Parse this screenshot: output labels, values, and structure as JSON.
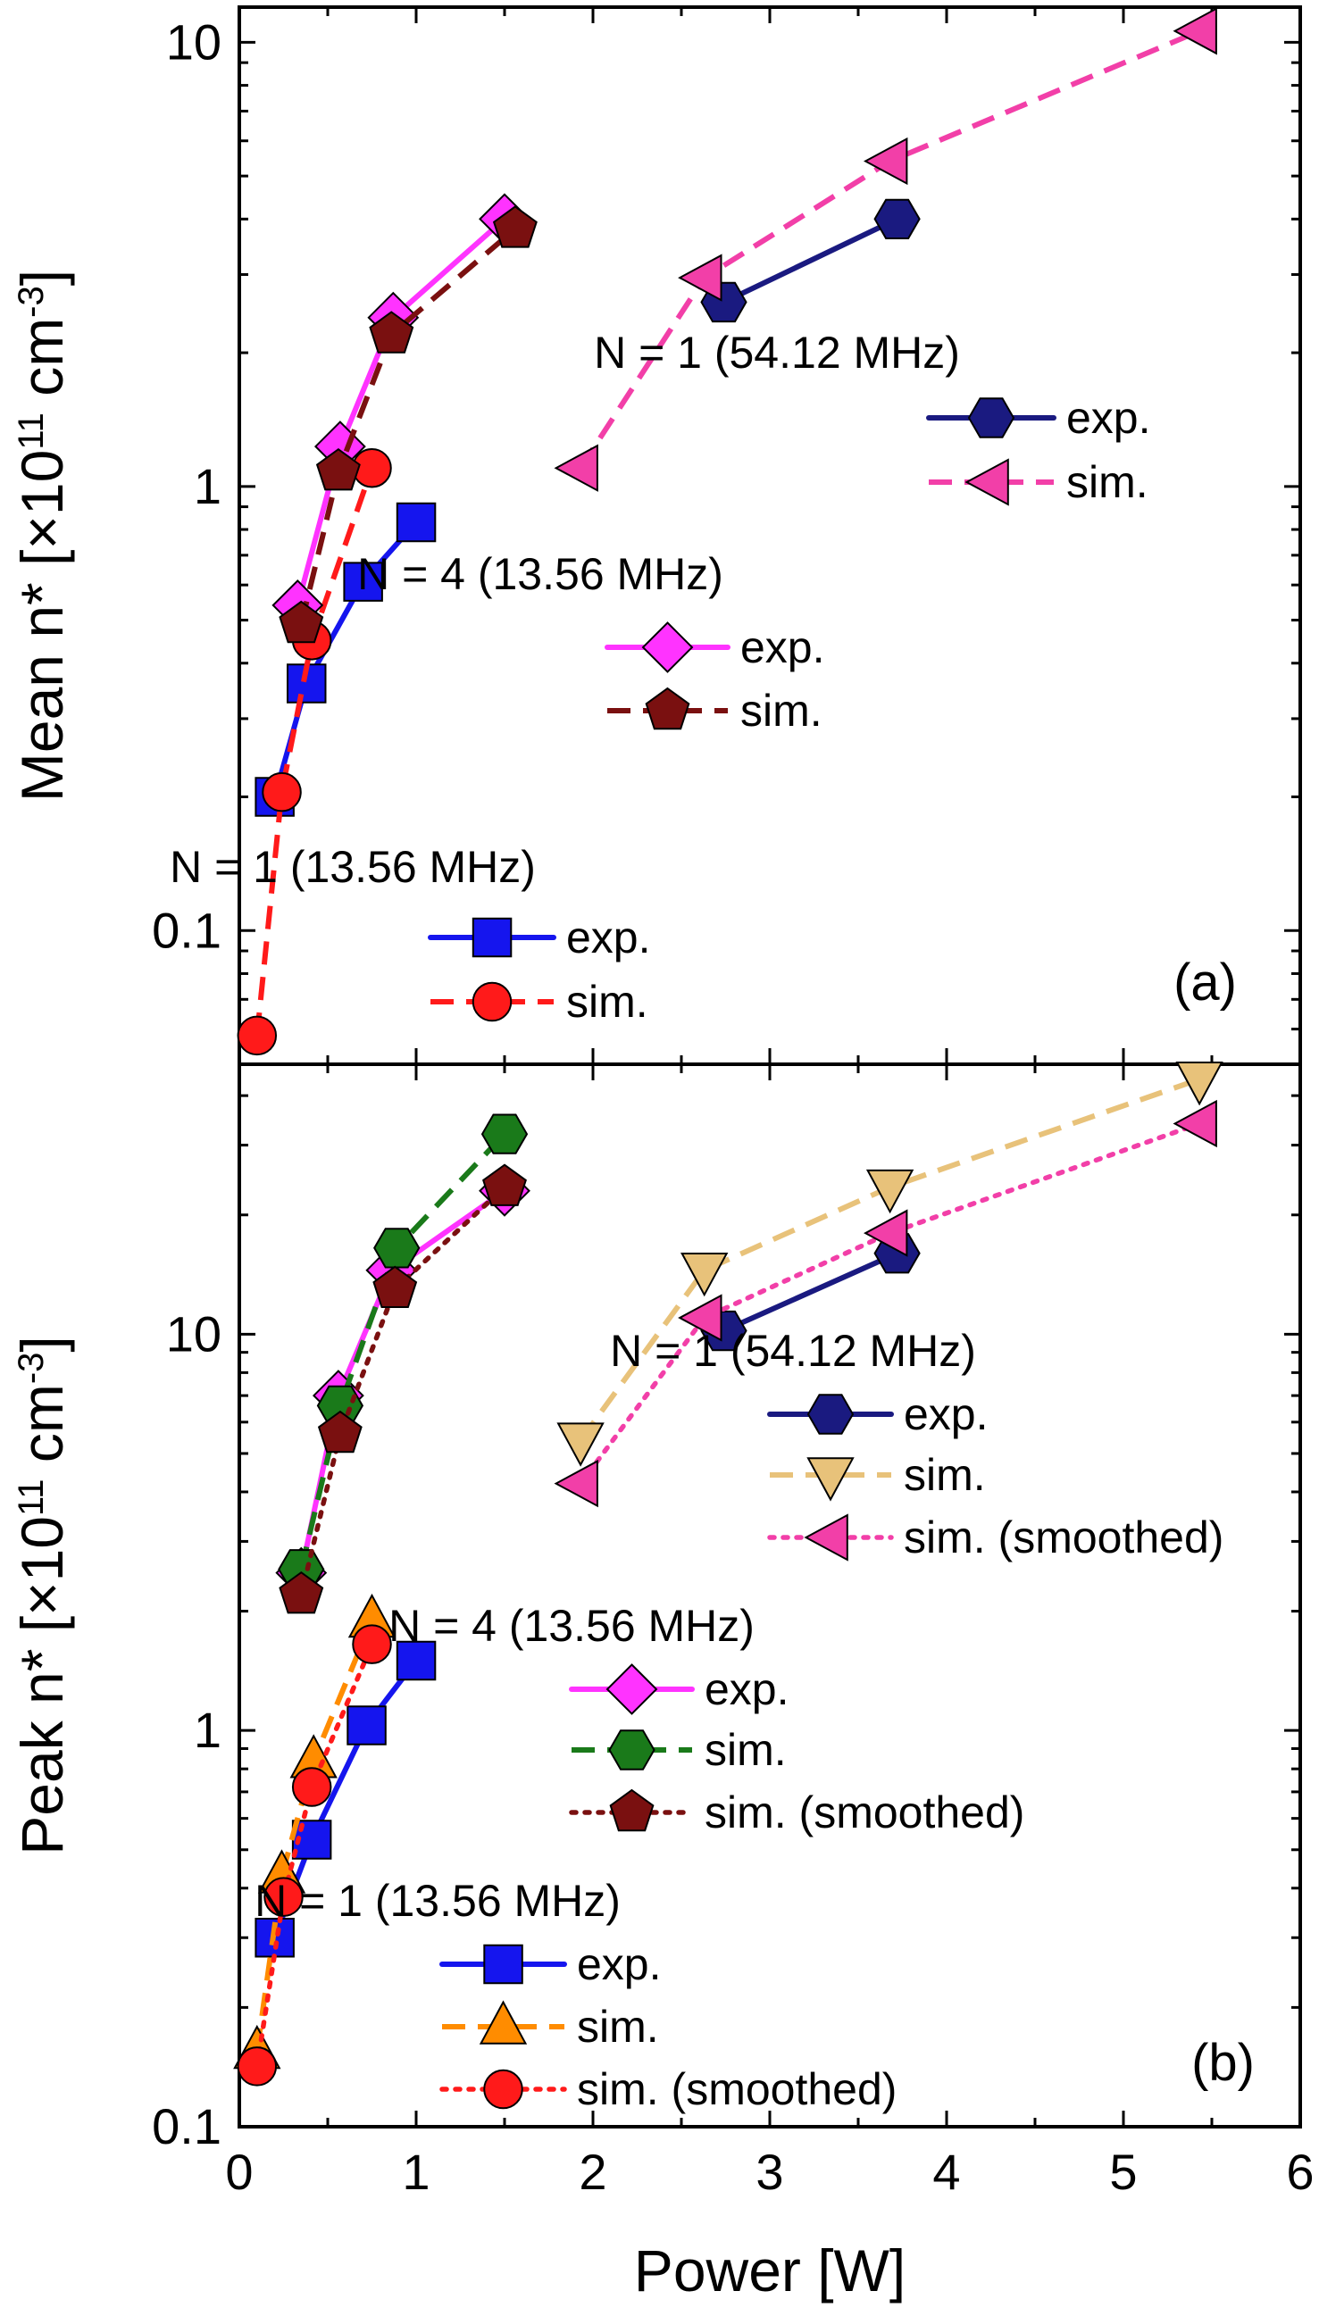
{
  "xaxis": {
    "label": "Power [W]",
    "range": [
      0,
      6
    ],
    "ticks": [
      0,
      1,
      2,
      3,
      4,
      5,
      6
    ],
    "tick_labels": [
      "0",
      "1",
      "2",
      "3",
      "4",
      "5",
      "6"
    ]
  },
  "chart_data": [
    {
      "type": "line",
      "panel": "(a)",
      "xlabel": "Power [W]",
      "ylabel_text": "Mean n* [×10",
      "ylabel_exp": "11",
      "ylabel_unit": " cm",
      "ylabel_unit_exp": "-3",
      "ylabel_close": "]",
      "yscale": "log",
      "xlim": [
        0,
        6
      ],
      "ylim": [
        0.05,
        12
      ],
      "yticks": [
        0.1,
        1,
        10
      ],
      "ytick_labels": [
        "0.1",
        "1",
        "10"
      ],
      "legend_groups": [
        {
          "title": "N = 1  (54.12 MHz)",
          "entries": [
            {
              "label": "exp.",
              "series": 4
            },
            {
              "label": "sim.",
              "series": 5
            }
          ]
        },
        {
          "title": "N = 4  (13.56 MHz)",
          "entries": [
            {
              "label": "exp.",
              "series": 2
            },
            {
              "label": "sim.",
              "series": 3
            }
          ]
        },
        {
          "title": "N = 1  (13.56 MHz)",
          "entries": [
            {
              "label": "exp.",
              "series": 0
            },
            {
              "label": "sim.",
              "series": 1
            }
          ]
        }
      ],
      "series": [
        {
          "name": "N = 1 (13.56 MHz) exp.",
          "color": "#1515ee",
          "dash": "solid",
          "marker": "square",
          "x": [
            0.2,
            0.38,
            0.7,
            1.0
          ],
          "y": [
            0.2,
            0.36,
            0.61,
            0.83
          ]
        },
        {
          "name": "N = 1 (13.56 MHz) sim.",
          "color": "#ff1a1a",
          "dash": "dashed",
          "marker": "circle",
          "x": [
            0.1,
            0.24,
            0.41,
            0.75
          ],
          "y": [
            0.058,
            0.205,
            0.45,
            1.1
          ]
        },
        {
          "name": "N = 4 (13.56 MHz) exp.",
          "color": "#ff33ff",
          "dash": "solid",
          "marker": "diamond",
          "x": [
            0.33,
            0.57,
            0.87,
            1.5
          ],
          "y": [
            0.54,
            1.23,
            2.4,
            4.0
          ]
        },
        {
          "name": "N = 4 (13.56 MHz) sim.",
          "color": "#7a1010",
          "dash": "dashed",
          "marker": "pentagon",
          "x": [
            0.35,
            0.56,
            0.86,
            1.56
          ],
          "y": [
            0.49,
            1.08,
            2.2,
            3.8
          ]
        },
        {
          "name": "N = 1 (54.12 MHz) exp.",
          "color": "#1a1a80",
          "dash": "solid",
          "marker": "hexagon",
          "x": [
            2.74,
            3.72
          ],
          "y": [
            2.6,
            4.0
          ]
        },
        {
          "name": "N = 1 (54.12 MHz) sim.",
          "color": "#f23fa8",
          "dash": "dashed",
          "marker": "triangle-left",
          "x": [
            1.93,
            2.63,
            3.68,
            5.43
          ],
          "y": [
            1.1,
            2.95,
            5.4,
            10.6
          ]
        }
      ]
    },
    {
      "type": "line",
      "panel": "(b)",
      "xlabel": "Power [W]",
      "ylabel_text": "Peak n* [×10",
      "ylabel_exp": "11",
      "ylabel_unit": " cm",
      "ylabel_unit_exp": "-3",
      "ylabel_close": "]",
      "yscale": "log",
      "xlim": [
        0,
        6
      ],
      "ylim": [
        0.1,
        48
      ],
      "yticks": [
        0.1,
        1,
        10
      ],
      "ytick_labels": [
        "0.1",
        "1",
        "10"
      ],
      "legend_groups": [
        {
          "title": "N = 1  (54.12 MHz)",
          "entries": [
            {
              "label": "exp.",
              "series": 6
            },
            {
              "label": "sim.",
              "series": 7
            },
            {
              "label": "sim. (smoothed)",
              "series": 8
            }
          ]
        },
        {
          "title": "N = 4  (13.56 MHz)",
          "entries": [
            {
              "label": "exp.",
              "series": 3
            },
            {
              "label": "sim.",
              "series": 4
            },
            {
              "label": "sim. (smoothed)",
              "series": 5
            }
          ]
        },
        {
          "title": "N = 1  (13.56 MHz)",
          "entries": [
            {
              "label": "exp.",
              "series": 0
            },
            {
              "label": "sim.",
              "series": 1
            },
            {
              "label": "sim. (smoothed)",
              "series": 2
            }
          ]
        }
      ],
      "series": [
        {
          "name": "N = 1 (13.56 MHz) exp.",
          "color": "#1515ee",
          "dash": "solid",
          "marker": "square",
          "x": [
            0.2,
            0.41,
            0.72,
            1.0
          ],
          "y": [
            0.3,
            0.53,
            1.03,
            1.5
          ]
        },
        {
          "name": "N = 1 (13.56 MHz) sim.",
          "color": "#ff8c00",
          "dash": "dashed",
          "marker": "triangle-up",
          "x": [
            0.1,
            0.24,
            0.42,
            0.75
          ],
          "y": [
            0.155,
            0.43,
            0.84,
            1.9
          ]
        },
        {
          "name": "N = 1 (13.56 MHz) sim. (smoothed)",
          "color": "#ff1a1a",
          "dash": "dotted",
          "marker": "circle",
          "x": [
            0.1,
            0.25,
            0.41,
            0.75
          ],
          "y": [
            0.142,
            0.38,
            0.72,
            1.65
          ]
        },
        {
          "name": "N = 4 (13.56 MHz) exp.",
          "color": "#ff33ff",
          "dash": "solid",
          "marker": "diamond",
          "x": [
            0.35,
            0.56,
            0.86,
            1.5
          ],
          "y": [
            2.5,
            7.0,
            14.5,
            23.0
          ]
        },
        {
          "name": "N = 4 (13.56 MHz) sim.",
          "color": "#1a7a1a",
          "dash": "dashed",
          "marker": "hexagon",
          "x": [
            0.35,
            0.57,
            0.89,
            1.5
          ],
          "y": [
            2.55,
            6.6,
            16.5,
            32.0
          ]
        },
        {
          "name": "N = 4 (13.56 MHz) sim. (smoothed)",
          "color": "#7a1010",
          "dash": "dotted",
          "marker": "pentagon",
          "x": [
            0.35,
            0.57,
            0.88,
            1.5
          ],
          "y": [
            2.2,
            5.6,
            13.0,
            23.5
          ]
        },
        {
          "name": "N = 1 (54.12 MHz) exp.",
          "color": "#1a1a80",
          "dash": "solid",
          "marker": "hexagon",
          "x": [
            2.74,
            3.72
          ],
          "y": [
            10.2,
            16.0
          ]
        },
        {
          "name": "N = 1 (54.12 MHz) sim.",
          "color": "#e8c27a",
          "dash": "dashed",
          "marker": "triangle-down",
          "x": [
            1.93,
            2.63,
            3.68,
            5.43
          ],
          "y": [
            5.4,
            14.5,
            23.5,
            44.0
          ]
        },
        {
          "name": "N = 1 (54.12 MHz) sim. (smoothed)",
          "color": "#f23fa8",
          "dash": "dotted",
          "marker": "triangle-left",
          "x": [
            1.93,
            2.63,
            3.68,
            5.43
          ],
          "y": [
            4.2,
            11.0,
            18.0,
            34.0
          ]
        }
      ]
    }
  ]
}
